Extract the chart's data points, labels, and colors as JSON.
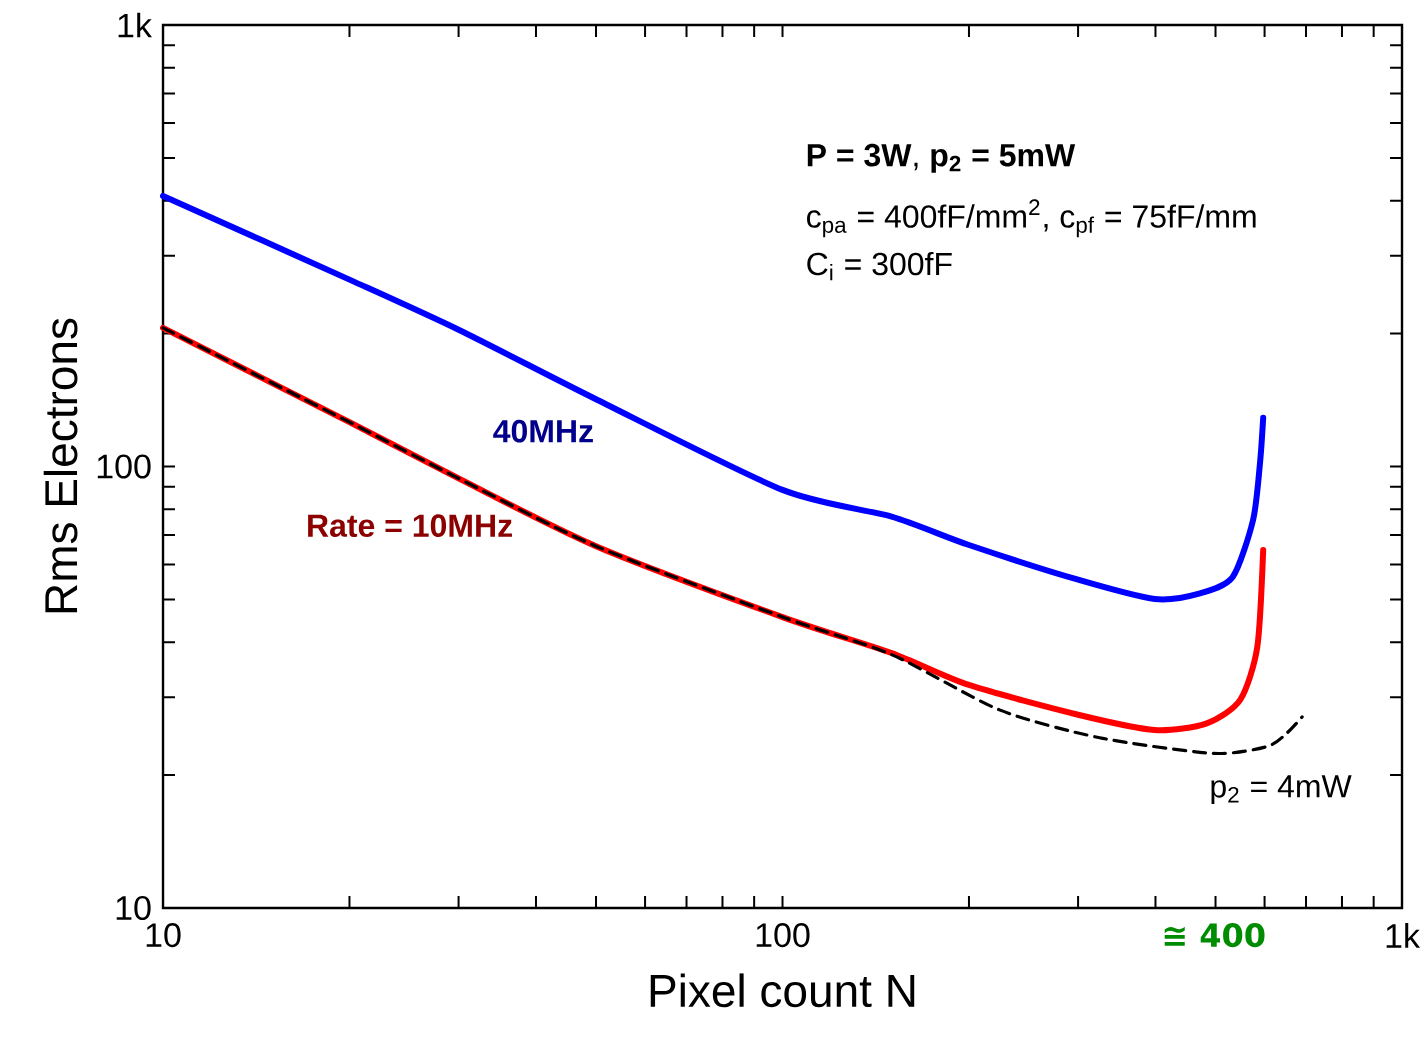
{
  "chart_data": {
    "type": "line",
    "xlabel": "Pixel count N",
    "ylabel": "Rms Electrons",
    "log": "xy",
    "xlim": [
      10,
      1000
    ],
    "ylim": [
      10,
      1000
    ],
    "xticks": [
      10,
      {
        "value": 20,
        "label": null
      },
      {
        "value": 30,
        "label": null
      },
      {
        "value": 40,
        "label": null
      },
      {
        "value": 50,
        "label": null
      },
      {
        "value": 60,
        "label": null
      },
      {
        "value": 70,
        "label": null
      },
      {
        "value": 80,
        "label": null
      },
      {
        "value": 90,
        "label": null
      },
      100,
      {
        "value": 200,
        "label": null
      },
      {
        "value": 300,
        "label": null
      },
      {
        "value": 400,
        "label": null
      },
      {
        "value": 500,
        "label": null
      },
      {
        "value": 600,
        "label": null
      },
      {
        "value": 700,
        "label": null
      },
      {
        "value": 800,
        "label": null
      },
      {
        "value": 900,
        "label": null
      },
      {
        "value": 1000,
        "label": "1k"
      }
    ],
    "yticks": [
      10,
      {
        "value": 20,
        "label": null
      },
      {
        "value": 30,
        "label": null
      },
      {
        "value": 40,
        "label": null
      },
      {
        "value": 50,
        "label": null
      },
      {
        "value": 60,
        "label": null
      },
      {
        "value": 70,
        "label": null
      },
      {
        "value": 80,
        "label": null
      },
      {
        "value": 90,
        "label": null
      },
      100,
      {
        "value": 200,
        "label": null
      },
      {
        "value": 300,
        "label": null
      },
      {
        "value": 400,
        "label": null
      },
      {
        "value": 500,
        "label": null
      },
      {
        "value": 600,
        "label": null
      },
      {
        "value": 700,
        "label": null
      },
      {
        "value": 800,
        "label": null
      },
      {
        "value": 900,
        "label": null
      },
      {
        "value": 1000,
        "label": "1k"
      }
    ],
    "series": [
      {
        "name": "40MHz",
        "color": "#0000ff",
        "x": [
          10,
          20,
          30,
          50,
          100,
          150,
          200,
          300,
          399,
          472,
          533,
          575,
          590,
          597
        ],
        "values": [
          410,
          265,
          204,
          142,
          88.5,
          77,
          66.4,
          55.4,
          50.1,
          51.6,
          56.2,
          75.7,
          102,
          129
        ]
      },
      {
        "name": "Rate = 10MHz",
        "color": "#ff0000",
        "x": [
          10,
          20,
          30,
          50,
          100,
          150,
          200,
          300,
          399,
          484,
          548,
          584,
          597
        ],
        "values": [
          206,
          126,
          94,
          66,
          45.6,
          37.8,
          32,
          27.4,
          25.3,
          26.2,
          29.6,
          39,
          64.7
        ]
      },
      {
        "name": "p$_{2}$ = 4mW",
        "color": "#000000",
        "line_style": "dashed",
        "x": [
          10,
          20,
          30,
          50,
          100,
          150,
          224,
          325,
          495,
          605,
          652,
          690
        ],
        "values": [
          206,
          126,
          94,
          66,
          45.6,
          37.5,
          28.1,
          24.3,
          22.4,
          23.2,
          24.9,
          27.1
        ]
      }
    ],
    "annotations": [
      "**P = 3W**, **p$_{2}$ = 5mW**",
      "c$_{pa}$ = 400fF/mm$^{2}$, c$_{pf}$ = 75fF/mm",
      "C$_{i}$ = 300fF",
      "≅ 400"
    ]
  }
}
